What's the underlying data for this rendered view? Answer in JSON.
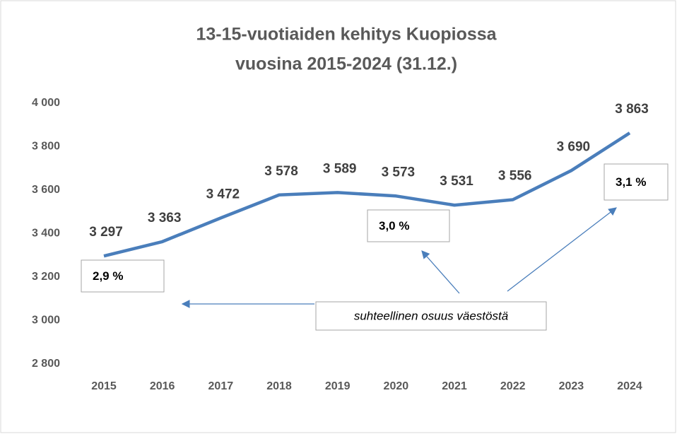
{
  "chart_data": {
    "type": "line",
    "title": [
      "13-15-vuotiaiden kehitys Kuopiossa",
      "vuosina 2015-2024 (31.12.)"
    ],
    "categories": [
      "2015",
      "2016",
      "2017",
      "2018",
      "2019",
      "2020",
      "2021",
      "2022",
      "2023",
      "2024"
    ],
    "series": [
      {
        "color": "#4a7ebb",
        "values": [
          3297,
          3363,
          3472,
          3578,
          3589,
          3573,
          3531,
          3556,
          3690,
          3863
        ],
        "value_labels": [
          "3 297",
          "3 363",
          "3 472",
          "3 578",
          "3 589",
          "3 573",
          "3 531",
          "3 556",
          "3 690",
          "3 863"
        ]
      }
    ],
    "ylim": [
      2800,
      4000
    ],
    "yticks": [
      {
        "value": 2800,
        "label": "2 800"
      },
      {
        "value": 3000,
        "label": "3 000"
      },
      {
        "value": 3200,
        "label": "3 200"
      },
      {
        "value": 3400,
        "label": "3 400"
      },
      {
        "value": 3600,
        "label": "3 600"
      },
      {
        "value": 3800,
        "label": "3 800"
      },
      {
        "value": 4000,
        "label": "4 000"
      }
    ],
    "grid": false,
    "annotations": [
      "2,9 %",
      "3,0 %",
      "3,1 %",
      "suhteellinen osuus väestöstä"
    ]
  }
}
